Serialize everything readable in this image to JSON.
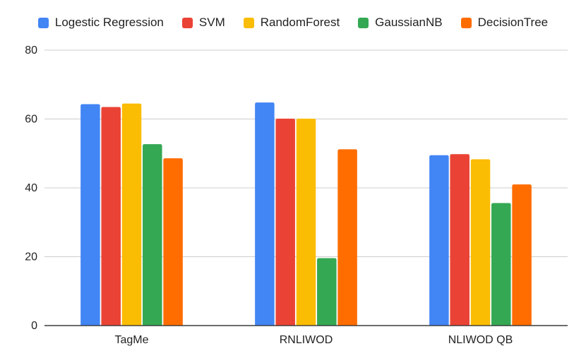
{
  "chart_data": {
    "type": "bar",
    "categories": [
      "TagMe",
      "RNLIWOD",
      "NLIWOD QB"
    ],
    "series": [
      {
        "name": "Logestic Regression",
        "color": "#4285F4",
        "values": [
          64.3,
          64.8,
          49.5
        ]
      },
      {
        "name": "SVM",
        "color": "#EA4335",
        "values": [
          63.5,
          60.1,
          49.8
        ]
      },
      {
        "name": "RandomForest",
        "color": "#FBBC04",
        "values": [
          64.5,
          60.1,
          48.3
        ]
      },
      {
        "name": "GaussianNB",
        "color": "#34A853",
        "values": [
          52.7,
          19.6,
          35.6
        ]
      },
      {
        "name": "DecisionTree",
        "color": "#FF6D01",
        "values": [
          48.6,
          51.2,
          41.0
        ]
      }
    ],
    "yticks": [
      "0",
      "20",
      "40",
      "60",
      "80"
    ],
    "ylim": [
      0,
      80
    ],
    "grid": true,
    "legend_position": "top"
  }
}
